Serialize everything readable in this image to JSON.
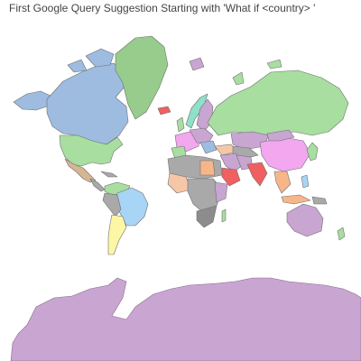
{
  "title": "First Google Query Suggestion Starting with 'What if <country> '",
  "palette": {
    "blue": "#9dbce0",
    "green": "#a8dea0",
    "dark_green": "#97cc8c",
    "purple": "#c9a5d2",
    "pink": "#f2a7ef",
    "yellow": "#fdf6a5",
    "orange": "#f7b68a",
    "red": "#f06060",
    "tan": "#d6b593",
    "light_blue": "#a8d4f5",
    "gray": "#a9a9a9",
    "dark_gray": "#8c8c8c",
    "teal": "#8fe0c8",
    "salmon": "#f6c7a7"
  }
}
